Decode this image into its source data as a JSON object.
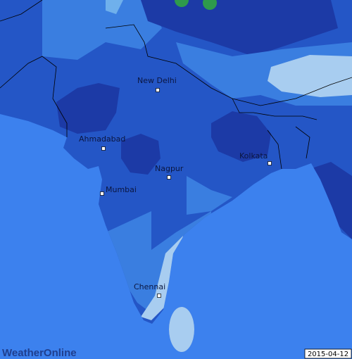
{
  "cities": [
    {
      "name": "New Delhi"
    },
    {
      "name": "Ahmadabad"
    },
    {
      "name": "Nagpur"
    },
    {
      "name": "Kolkata"
    },
    {
      "name": "Mumbai"
    },
    {
      "name": "Chennai"
    }
  ],
  "brand": "WeatherOnline",
  "date": "2015-04-12"
}
